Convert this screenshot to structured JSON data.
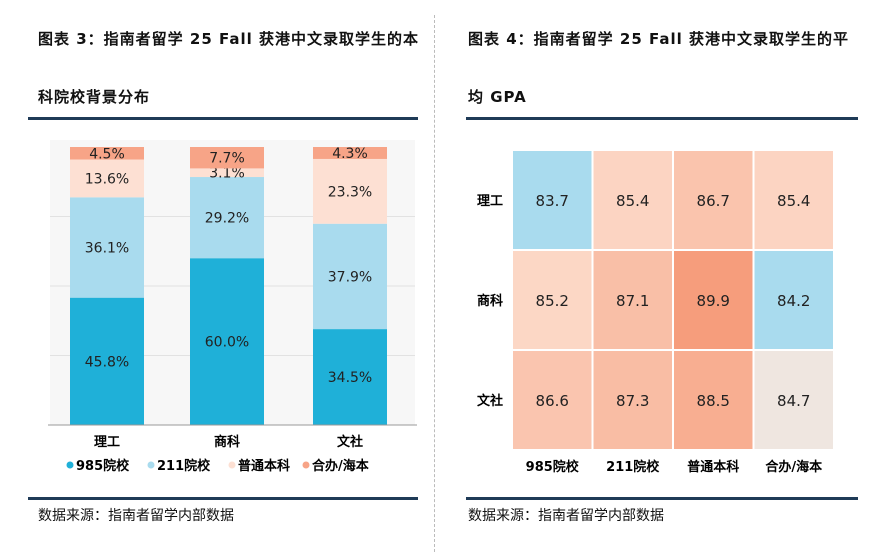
{
  "left_title": "图表 3：指南者留学 25 Fall 获港中文录取学生的本科院校背景分布",
  "right_title": "图表 4：指南者留学 25 Fall 获港中文录取学生的平均 GPA",
  "left_source": "数据来源：指南者留学内部数据",
  "right_source": "数据来源：指南者留学内部数据",
  "chart_data": [
    {
      "type": "bar",
      "stacked": true,
      "categories": [
        "理工",
        "商科",
        "文社"
      ],
      "series": [
        {
          "name": "985院校",
          "color": "#1fb0d8",
          "values": [
            45.8,
            60.0,
            34.5
          ]
        },
        {
          "name": "211院校",
          "color": "#a9dbee",
          "values": [
            36.1,
            29.2,
            37.9
          ]
        },
        {
          "name": "普通本科",
          "color": "#fde0d3",
          "values": [
            13.6,
            3.1,
            23.3
          ]
        },
        {
          "name": "合办/海本",
          "color": "#f7a487",
          "values": [
            4.5,
            7.7,
            4.3
          ]
        }
      ],
      "labels": [
        [
          "45.8%",
          "36.1%",
          "13.6%",
          "4.5%"
        ],
        [
          "60.0%",
          "29.2%",
          "3.1%",
          "7.7%"
        ],
        [
          "34.5%",
          "37.9%",
          "23.3%",
          "4.3%"
        ]
      ],
      "ylim": [
        0,
        100
      ],
      "legend": "bottom"
    },
    {
      "type": "heatmap",
      "rows": [
        "理工",
        "商科",
        "文社"
      ],
      "columns": [
        "985院校",
        "211院校",
        "普通本科",
        "合办/海本"
      ],
      "values": [
        [
          83.7,
          85.4,
          86.7,
          85.4
        ],
        [
          85.2,
          87.1,
          89.9,
          84.2
        ],
        [
          86.6,
          87.3,
          88.5,
          84.7
        ]
      ]
    }
  ]
}
